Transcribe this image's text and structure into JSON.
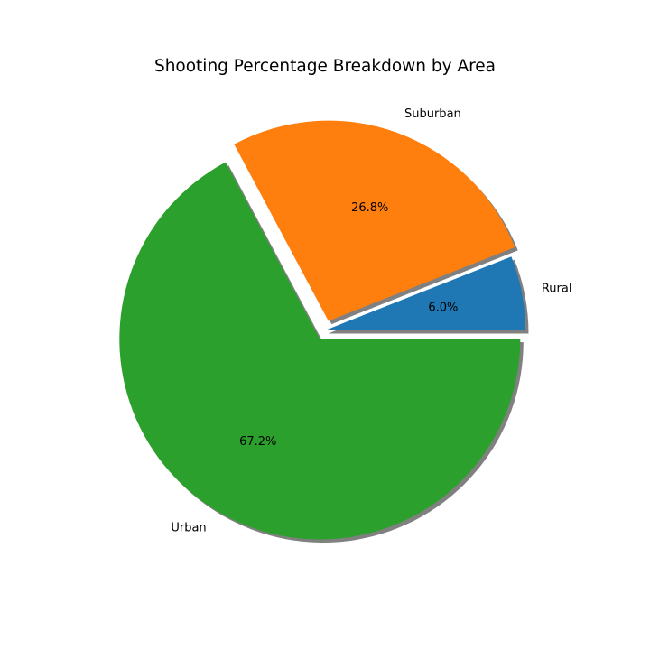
{
  "chart_data": {
    "type": "pie",
    "title": "Shooting Percentage Breakdown by Area",
    "categories": [
      "Rural",
      "Suburban",
      "Urban"
    ],
    "values": [
      6.0,
      26.8,
      67.2
    ],
    "percent_labels": [
      "6.0%",
      "26.8%",
      "67.2%"
    ],
    "explode": [
      0,
      0.05,
      0.05
    ],
    "shadow": true,
    "start_angle": 0,
    "colors": [
      "#1f77b4",
      "#ff7f0e",
      "#2ca02c"
    ],
    "shadow_color": "#808080"
  }
}
